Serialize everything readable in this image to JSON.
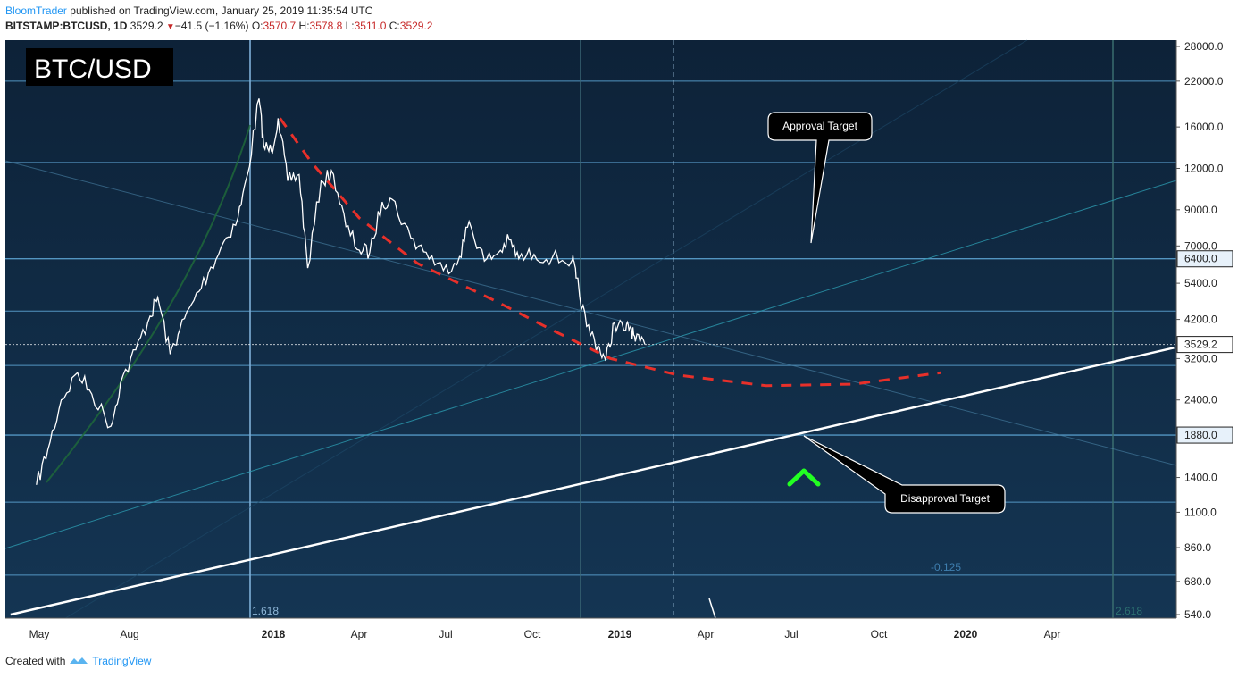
{
  "header": {
    "author": "BloomTrader",
    "published": "published on TradingView.com, January 25, 2019 11:35:54 UTC",
    "symbol": "BITSTAMP:BTCUSD, 1D",
    "last": "3529.2",
    "change": "−41.5 (−1.16%)",
    "o_label": "O:",
    "o_value": "3570.7",
    "h_label": "H:",
    "h_value": "3578.8",
    "l_label": "L:",
    "l_value": "3511.0",
    "c_label": "C:",
    "c_value": "3529.2"
  },
  "footer": {
    "created_with": "Created with",
    "brand": "TradingView"
  },
  "colors": {
    "background": "#102a44",
    "price_line": "#ffffff",
    "projection": "#e8302a",
    "level_line": "#5fa8d8",
    "arrow": "#22ff22"
  },
  "chart_data": {
    "type": "line",
    "title": "BTC/USD",
    "scale": "log",
    "ylim": [
      540,
      28000
    ],
    "y_ticks": [
      540,
      680,
      860,
      1100,
      1400,
      1880,
      2400,
      3200,
      3529.2,
      4200,
      5400,
      6400,
      7000,
      9000,
      12000,
      16000,
      22000,
      28000
    ],
    "y_tick_labels": [
      "540.0",
      "680.0",
      "860.0",
      "1100.0",
      "1400.0",
      "1880.0",
      "2400.0",
      "3200.0",
      "3529.2",
      "4200.0",
      "5400.0",
      "6400.0",
      "7000.0",
      "9000.0",
      "12000.0",
      "16000.0",
      "22000.0",
      "28000.0"
    ],
    "highlighted_levels": [
      "6400.0",
      "1880.0"
    ],
    "current_price_label": "3529.2",
    "x_ticks": [
      "May",
      "Aug",
      "2018",
      "Apr",
      "Jul",
      "Oct",
      "2019",
      "Apr",
      "Jul",
      "Oct",
      "2020",
      "Apr"
    ],
    "bold_x_ticks": [
      "2018",
      "2019",
      "2020"
    ],
    "series": [
      {
        "values": [
          [
            "2017-04-28",
            1330
          ],
          [
            "2017-05-10",
            1700
          ],
          [
            "2017-05-24",
            2400
          ],
          [
            "2017-06-10",
            2900
          ],
          [
            "2017-06-25",
            2500
          ],
          [
            "2017-07-15",
            2000
          ],
          [
            "2017-07-25",
            2700
          ],
          [
            "2017-08-10",
            3400
          ],
          [
            "2017-08-25",
            4300
          ],
          [
            "2017-09-02",
            4900
          ],
          [
            "2017-09-15",
            3300
          ],
          [
            "2017-09-25",
            3900
          ],
          [
            "2017-10-10",
            4800
          ],
          [
            "2017-10-25",
            5800
          ],
          [
            "2017-11-10",
            7200
          ],
          [
            "2017-11-25",
            8500
          ],
          [
            "2017-12-05",
            11500
          ],
          [
            "2017-12-17",
            19500
          ],
          [
            "2017-12-22",
            14000
          ],
          [
            "2017-12-30",
            13500
          ],
          [
            "2018-01-06",
            17000
          ],
          [
            "2018-01-16",
            11000
          ],
          [
            "2018-01-28",
            11500
          ],
          [
            "2018-02-06",
            6000
          ],
          [
            "2018-02-20",
            11000
          ],
          [
            "2018-03-05",
            11500
          ],
          [
            "2018-03-18",
            8000
          ],
          [
            "2018-04-01",
            6800
          ],
          [
            "2018-04-12",
            6700
          ],
          [
            "2018-04-25",
            9500
          ],
          [
            "2018-05-05",
            9700
          ],
          [
            "2018-05-25",
            7400
          ],
          [
            "2018-06-10",
            6700
          ],
          [
            "2018-06-28",
            5900
          ],
          [
            "2018-07-15",
            6500
          ],
          [
            "2018-07-25",
            8300
          ],
          [
            "2018-08-10",
            6300
          ],
          [
            "2018-08-25",
            6700
          ],
          [
            "2018-09-05",
            7300
          ],
          [
            "2018-09-15",
            6400
          ],
          [
            "2018-10-01",
            6600
          ],
          [
            "2018-10-20",
            6450
          ],
          [
            "2018-11-10",
            6350
          ],
          [
            "2018-11-14",
            5600
          ],
          [
            "2018-11-25",
            4000
          ],
          [
            "2018-12-07",
            3500
          ],
          [
            "2018-12-15",
            3150
          ],
          [
            "2018-12-24",
            4100
          ],
          [
            "2019-01-05",
            3900
          ],
          [
            "2019-01-10",
            4000
          ],
          [
            "2019-01-15",
            3600
          ],
          [
            "2019-01-25",
            3529.2
          ]
        ]
      },
      {
        "values": [
          [
            "2018-01-08",
            17000
          ],
          [
            "2018-02-10",
            12500
          ],
          [
            "2018-04-01",
            8500
          ],
          [
            "2018-06-01",
            6200
          ],
          [
            "2018-08-20",
            4800
          ],
          [
            "2018-10-20",
            3900
          ],
          [
            "2018-12-20",
            3200
          ],
          [
            "2019-03-01",
            2850
          ],
          [
            "2019-06-01",
            2650
          ],
          [
            "2019-09-01",
            2680
          ],
          [
            "2019-12-01",
            2900
          ]
        ]
      },
      {
        "values": [
          [
            "2017-04-01",
            540
          ],
          [
            "2020-08-01",
            3450
          ]
        ]
      }
    ],
    "annotations": [
      {
        "text": "Approval Target",
        "date": "2019-07-01",
        "price": 7000
      },
      {
        "text": "Disapproval Target",
        "date": "2019-07-01",
        "price": 1880
      }
    ],
    "fib_labels": [
      "1.618",
      "-0.125",
      "2.618"
    ]
  }
}
